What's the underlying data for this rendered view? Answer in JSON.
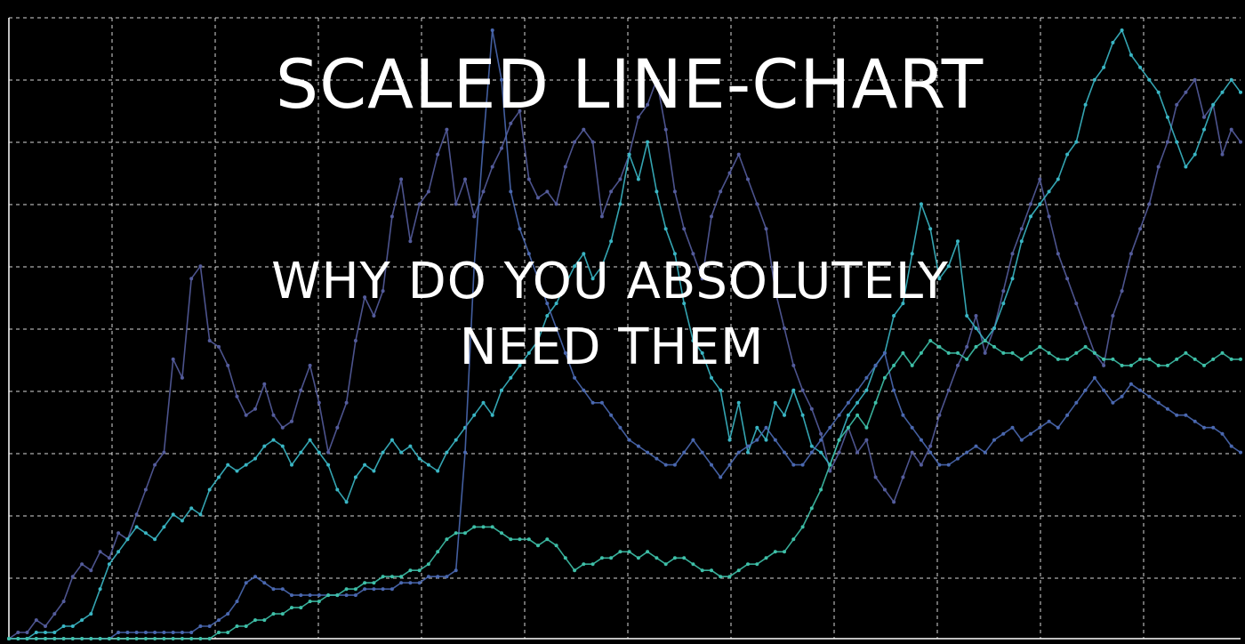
{
  "headline": {
    "title": "SCALED LINE-CHART",
    "subtitle_line1": "WHY DO YOU ABSOLUTELY",
    "subtitle_line2": "NEED THEM"
  },
  "colors": {
    "background": "#000000",
    "grid": "#ffffff",
    "series": [
      "#545c9c",
      "#3ab6c4",
      "#4a68b0",
      "#3ec0a8"
    ]
  },
  "chart_data": {
    "type": "line",
    "title": "",
    "xlabel": "",
    "ylabel": "",
    "grid": true,
    "ylim": [
      0,
      100
    ],
    "xlim": [
      0,
      135
    ],
    "series": [
      {
        "color": "#545c9c",
        "values": [
          0,
          1,
          1,
          3,
          2,
          4,
          6,
          10,
          12,
          11,
          14,
          13,
          17,
          16,
          20,
          24,
          28,
          30,
          45,
          42,
          58,
          60,
          48,
          47,
          44,
          39,
          36,
          37,
          41,
          36,
          34,
          35,
          40,
          44,
          38,
          30,
          34,
          38,
          48,
          55,
          52,
          56,
          68,
          74,
          64,
          70,
          72,
          78,
          82,
          70,
          74,
          68,
          72,
          76,
          79,
          83,
          85,
          74,
          71,
          72,
          70,
          76,
          80,
          82,
          80,
          68,
          72,
          74,
          78,
          84,
          86,
          90,
          82,
          72,
          66,
          62,
          58,
          68,
          72,
          75,
          78,
          74,
          70,
          66,
          56,
          50,
          44,
          40,
          37,
          33,
          27,
          30,
          34,
          30,
          32,
          26,
          24,
          22,
          26,
          30,
          28,
          31,
          36,
          40,
          44,
          47,
          52,
          46,
          50,
          56,
          62,
          66,
          70,
          74,
          68,
          62,
          58,
          54,
          50,
          46,
          44,
          52,
          56,
          62,
          66,
          70,
          76,
          80,
          86,
          88,
          90,
          84,
          86,
          78,
          82,
          80
        ]
      },
      {
        "color": "#3ab6c4",
        "values": [
          0,
          0,
          0,
          1,
          1,
          1,
          2,
          2,
          3,
          4,
          8,
          12,
          14,
          16,
          18,
          17,
          16,
          18,
          20,
          19,
          21,
          20,
          24,
          26,
          28,
          27,
          28,
          29,
          31,
          32,
          31,
          28,
          30,
          32,
          30,
          28,
          24,
          22,
          26,
          28,
          27,
          30,
          32,
          30,
          31,
          29,
          28,
          27,
          30,
          32,
          34,
          36,
          38,
          36,
          40,
          42,
          44,
          46,
          48,
          52,
          54,
          57,
          60,
          62,
          58,
          60,
          64,
          70,
          78,
          74,
          80,
          72,
          66,
          62,
          54,
          48,
          46,
          42,
          40,
          32,
          38,
          30,
          34,
          32,
          38,
          36,
          40,
          36,
          31,
          30,
          28,
          32,
          36,
          38,
          40,
          44,
          46,
          52,
          54,
          62,
          70,
          66,
          58,
          60,
          64,
          52,
          50,
          48,
          50,
          54,
          58,
          64,
          68,
          70,
          72,
          74,
          78,
          80,
          86,
          90,
          92,
          96,
          98,
          94,
          92,
          90,
          88,
          84,
          80,
          76,
          78,
          82,
          86,
          88,
          90,
          88
        ]
      },
      {
        "color": "#4a68b0",
        "values": [
          0,
          0,
          0,
          0,
          0,
          0,
          0,
          0,
          0,
          0,
          0,
          0,
          1,
          1,
          1,
          1,
          1,
          1,
          1,
          1,
          1,
          2,
          2,
          3,
          4,
          6,
          9,
          10,
          9,
          8,
          8,
          7,
          7,
          7,
          7,
          7,
          7,
          7,
          7,
          8,
          8,
          8,
          8,
          9,
          9,
          9,
          10,
          10,
          10,
          11,
          30,
          60,
          80,
          98,
          90,
          72,
          66,
          62,
          58,
          54,
          50,
          46,
          42,
          40,
          38,
          38,
          36,
          34,
          32,
          31,
          30,
          29,
          28,
          28,
          30,
          32,
          30,
          28,
          26,
          28,
          30,
          31,
          32,
          34,
          32,
          30,
          28,
          28,
          30,
          32,
          34,
          36,
          38,
          40,
          42,
          44,
          46,
          40,
          36,
          34,
          32,
          30,
          28,
          28,
          29,
          30,
          31,
          30,
          32,
          33,
          34,
          32,
          33,
          34,
          35,
          34,
          36,
          38,
          40,
          42,
          40,
          38,
          39,
          41,
          40,
          39,
          38,
          37,
          36,
          36,
          35,
          34,
          34,
          33,
          31,
          30
        ]
      },
      {
        "color": "#3ec0a8",
        "values": [
          0,
          0,
          0,
          0,
          0,
          0,
          0,
          0,
          0,
          0,
          0,
          0,
          0,
          0,
          0,
          0,
          0,
          0,
          0,
          0,
          0,
          0,
          0,
          1,
          1,
          2,
          2,
          3,
          3,
          4,
          4,
          5,
          5,
          6,
          6,
          7,
          7,
          8,
          8,
          9,
          9,
          10,
          10,
          10,
          11,
          11,
          12,
          14,
          16,
          17,
          17,
          18,
          18,
          18,
          17,
          16,
          16,
          16,
          15,
          16,
          15,
          13,
          11,
          12,
          12,
          13,
          13,
          14,
          14,
          13,
          14,
          13,
          12,
          13,
          13,
          12,
          11,
          11,
          10,
          10,
          11,
          12,
          12,
          13,
          14,
          14,
          16,
          18,
          21,
          24,
          28,
          32,
          34,
          36,
          34,
          38,
          42,
          44,
          46,
          44,
          46,
          48,
          47,
          46,
          46,
          45,
          47,
          48,
          47,
          46,
          46,
          45,
          46,
          47,
          46,
          45,
          45,
          46,
          47,
          46,
          45,
          45,
          44,
          44,
          45,
          45,
          44,
          44,
          45,
          46,
          45,
          44,
          45,
          46,
          45,
          45
        ]
      }
    ]
  }
}
